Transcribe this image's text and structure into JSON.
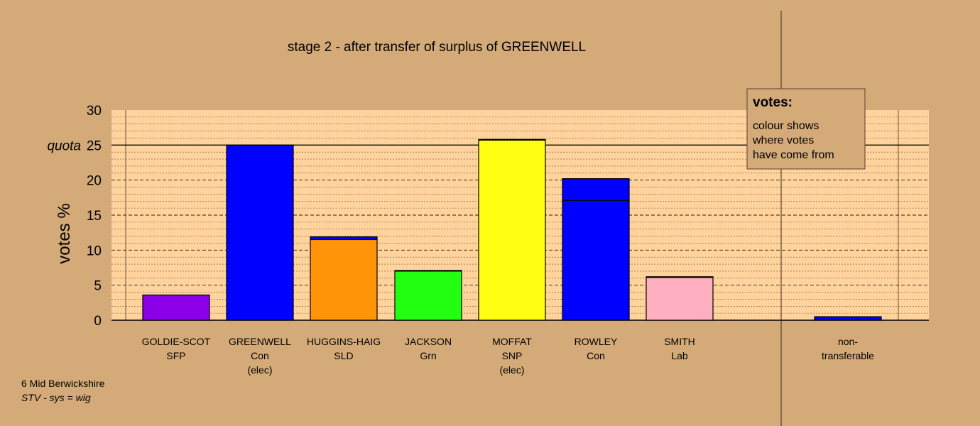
{
  "chart_data": {
    "type": "bar",
    "title": "stage 2 - after transfer of surplus of GREENWELL",
    "ylabel": "votes %",
    "ylim": [
      0,
      30
    ],
    "yticks": [
      0,
      5,
      10,
      15,
      20,
      25,
      30
    ],
    "quota": {
      "value": 25,
      "label": "quota"
    },
    "grid": true,
    "candidates": [
      {
        "name": "GOLDIE-SCOT",
        "party": "SFP",
        "note": "",
        "total": 3.6,
        "segments": [
          {
            "value": 3.6,
            "color": "#8b00e8"
          }
        ]
      },
      {
        "name": "GREENWELL",
        "party": "Con",
        "note": "(elec)",
        "total": 25.0,
        "segments": [
          {
            "value": 25.0,
            "color": "#0000ff"
          }
        ]
      },
      {
        "name": "HUGGINS-HAIG",
        "party": "SLD",
        "note": "",
        "total": 11.9,
        "segments": [
          {
            "value": 11.5,
            "color": "#ff9408"
          },
          {
            "value": 0.4,
            "color": "#0000ff"
          }
        ]
      },
      {
        "name": "JACKSON",
        "party": "Grn",
        "note": "",
        "total": 7.1,
        "segments": [
          {
            "value": 7.0,
            "color": "#22ff11"
          },
          {
            "value": 0.1,
            "color": "#0000ff"
          }
        ]
      },
      {
        "name": "MOFFAT",
        "party": "SNP",
        "note": "(elec)",
        "total": 25.8,
        "segments": [
          {
            "value": 25.7,
            "color": "#ffff11"
          },
          {
            "value": 0.1,
            "color": "#0000ff"
          }
        ]
      },
      {
        "name": "ROWLEY",
        "party": "Con",
        "note": "",
        "total": 20.2,
        "segments": [
          {
            "value": 17.1,
            "color": "#0000ff"
          },
          {
            "value": 3.1,
            "color": "#0000ff"
          }
        ]
      },
      {
        "name": "SMITH",
        "party": "Lab",
        "note": "",
        "total": 6.2,
        "segments": [
          {
            "value": 6.1,
            "color": "#ffb0c0"
          },
          {
            "value": 0.1,
            "color": "#0000ff"
          }
        ]
      },
      {
        "name": "non-",
        "party": "transferable",
        "note": "",
        "total": 0.5,
        "segments": [
          {
            "value": 0.5,
            "color": "#0000ff"
          }
        ]
      }
    ],
    "legend": {
      "heading": "votes:",
      "lines": [
        "colour shows",
        "where votes",
        "have come from"
      ]
    }
  },
  "footer": {
    "line1": "6 Mid Berwickshire",
    "line2": "STV - sys = wig"
  }
}
